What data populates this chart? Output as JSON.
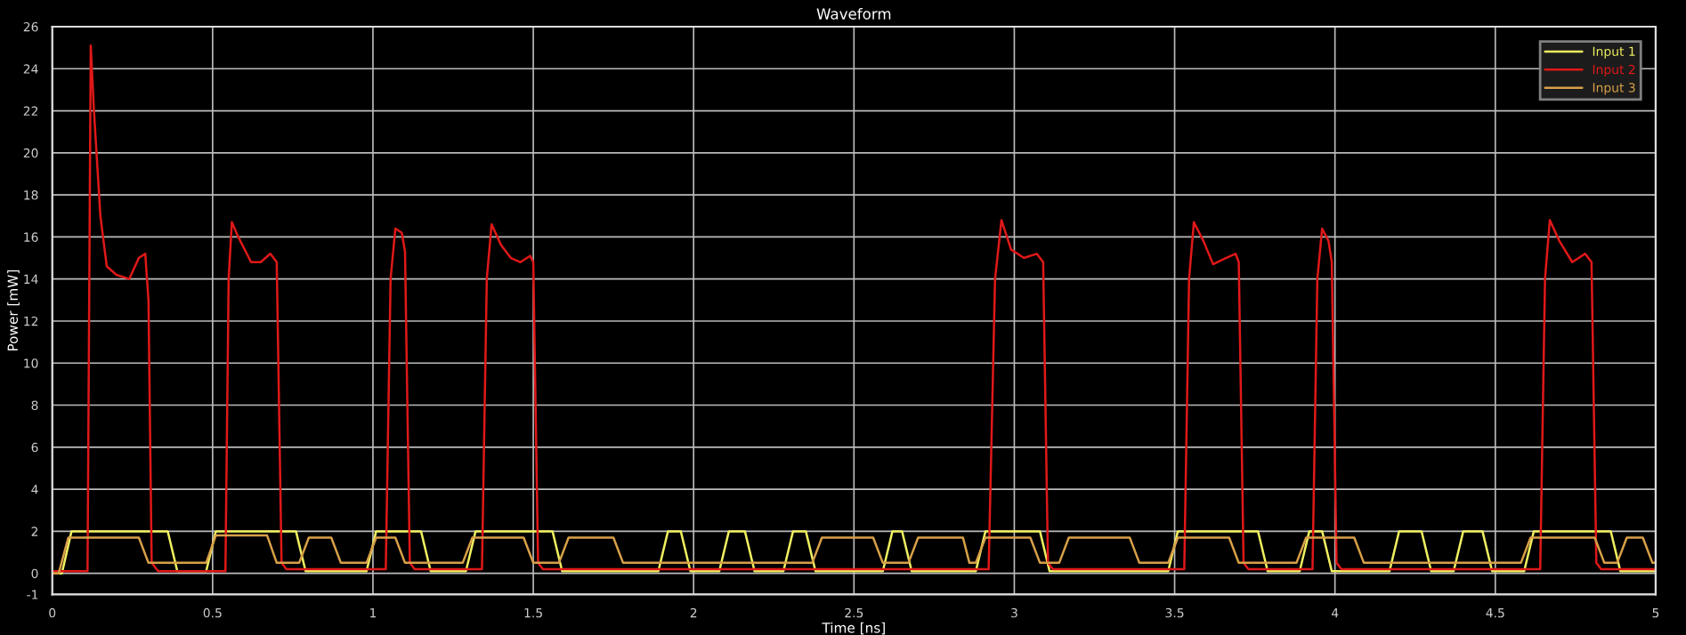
{
  "chart_data": {
    "type": "line",
    "title": "Waveform",
    "xlabel": "Time [ns]",
    "ylabel": "Power [mW]",
    "xlim": [
      0,
      5
    ],
    "xticks": [
      0,
      0.5,
      1,
      1.5,
      2,
      2.5,
      3,
      3.5,
      4,
      4.5,
      5
    ],
    "ylim": [
      -1,
      26
    ],
    "yticks": [
      -1,
      0,
      2,
      4,
      6,
      8,
      10,
      12,
      14,
      16,
      18,
      20,
      22,
      24,
      26
    ],
    "grid": true,
    "legend": "top right",
    "marker": "none",
    "line_style": "solid",
    "series": [
      {
        "name": "Input 1",
        "color": "#f0f060",
        "x": [
          0,
          0.03,
          0.06,
          0.36,
          0.39,
          0.48,
          0.51,
          0.76,
          0.79,
          0.98,
          1.01,
          1.15,
          1.18,
          1.29,
          1.32,
          1.56,
          1.59,
          1.89,
          1.92,
          1.96,
          1.99,
          2.08,
          2.11,
          2.16,
          2.19,
          2.28,
          2.31,
          2.35,
          2.38,
          2.59,
          2.62,
          2.65,
          2.68,
          2.88,
          2.91,
          3.08,
          3.11,
          3.48,
          3.51,
          3.76,
          3.79,
          3.89,
          3.92,
          3.96,
          3.99,
          4.17,
          4.2,
          4.27,
          4.3,
          4.37,
          4.4,
          4.46,
          4.49,
          4.59,
          4.62,
          4.86,
          4.89,
          5.0
        ],
        "values": [
          0,
          0,
          2,
          2,
          0.1,
          0.1,
          2,
          2,
          0.1,
          0.1,
          2,
          2,
          0.1,
          0.1,
          2,
          2,
          0.1,
          0.1,
          2,
          2,
          0.1,
          0.1,
          2,
          2,
          0.1,
          0.1,
          2,
          2,
          0.1,
          0.1,
          2,
          2,
          0.1,
          0.1,
          2,
          2,
          0.1,
          0.1,
          2,
          2,
          0.1,
          0.1,
          2,
          2,
          0.1,
          0.1,
          2,
          2,
          0.1,
          0.1,
          2,
          2,
          0.1,
          0.1,
          2,
          2,
          0.1,
          0.1
        ]
      },
      {
        "name": "Input 2",
        "color": "#e01818",
        "x": [
          0,
          0.11,
          0.12,
          0.13,
          0.15,
          0.17,
          0.2,
          0.24,
          0.27,
          0.29,
          0.3,
          0.31,
          0.33,
          0.54,
          0.55,
          0.56,
          0.58,
          0.62,
          0.65,
          0.68,
          0.7,
          0.715,
          0.73,
          1.04,
          1.055,
          1.07,
          1.09,
          1.1,
          1.115,
          1.13,
          1.34,
          1.355,
          1.37,
          1.4,
          1.43,
          1.46,
          1.49,
          1.5,
          1.515,
          1.53,
          2.92,
          2.94,
          2.96,
          2.99,
          3.03,
          3.07,
          3.09,
          3.105,
          3.12,
          3.53,
          3.545,
          3.56,
          3.59,
          3.62,
          3.66,
          3.69,
          3.7,
          3.715,
          3.73,
          3.93,
          3.945,
          3.96,
          3.98,
          3.99,
          4.005,
          4.02,
          4.64,
          4.655,
          4.67,
          4.7,
          4.74,
          4.78,
          4.8,
          4.815,
          4.83,
          5.0
        ],
        "values": [
          0.1,
          0.1,
          25.1,
          22,
          17,
          14.6,
          14.2,
          14.0,
          15.0,
          15.2,
          13,
          0.5,
          0.1,
          0.1,
          14,
          16.7,
          16.0,
          14.8,
          14.8,
          15.2,
          14.8,
          0.5,
          0.2,
          0.2,
          14,
          16.4,
          16.2,
          15.3,
          0.5,
          0.2,
          0.2,
          14,
          16.6,
          15.6,
          15.0,
          14.8,
          15.1,
          14.8,
          0.5,
          0.2,
          0.2,
          14,
          16.8,
          15.4,
          15.0,
          15.2,
          14.8,
          0.5,
          0.2,
          0.2,
          14,
          16.7,
          15.8,
          14.7,
          15.0,
          15.2,
          14.8,
          0.5,
          0.2,
          0.2,
          14,
          16.4,
          15.8,
          14.8,
          0.5,
          0.2,
          0.2,
          14,
          16.8,
          15.8,
          14.8,
          15.2,
          14.8,
          0.5,
          0.2,
          0.2
        ]
      },
      {
        "name": "Input 3",
        "color": "#d8a048",
        "x": [
          0,
          0.02,
          0.05,
          0.27,
          0.3,
          0.48,
          0.51,
          0.67,
          0.7,
          0.77,
          0.8,
          0.87,
          0.9,
          0.98,
          1.01,
          1.07,
          1.1,
          1.28,
          1.31,
          1.47,
          1.5,
          1.58,
          1.61,
          1.75,
          1.78,
          2.37,
          2.4,
          2.56,
          2.59,
          2.67,
          2.7,
          2.84,
          2.86,
          2.88,
          2.91,
          3.05,
          3.08,
          3.14,
          3.17,
          3.36,
          3.39,
          3.48,
          3.51,
          3.67,
          3.7,
          3.88,
          3.91,
          4.06,
          4.09,
          4.58,
          4.61,
          4.81,
          4.84,
          4.88,
          4.91,
          4.96,
          4.99,
          5.0
        ],
        "values": [
          0,
          0,
          1.7,
          1.7,
          0.5,
          0.5,
          1.8,
          1.8,
          0.5,
          0.5,
          1.7,
          1.7,
          0.5,
          0.5,
          1.7,
          1.7,
          0.5,
          0.5,
          1.7,
          1.7,
          0.5,
          0.5,
          1.7,
          1.7,
          0.5,
          0.5,
          1.7,
          1.7,
          0.5,
          0.5,
          1.7,
          1.7,
          0.5,
          0.5,
          1.7,
          1.7,
          0.5,
          0.5,
          1.7,
          1.7,
          0.5,
          0.5,
          1.7,
          1.7,
          0.5,
          0.5,
          1.7,
          1.7,
          0.5,
          0.5,
          1.7,
          1.7,
          0.5,
          0.5,
          1.7,
          1.7,
          0.5,
          0.5
        ]
      }
    ]
  }
}
